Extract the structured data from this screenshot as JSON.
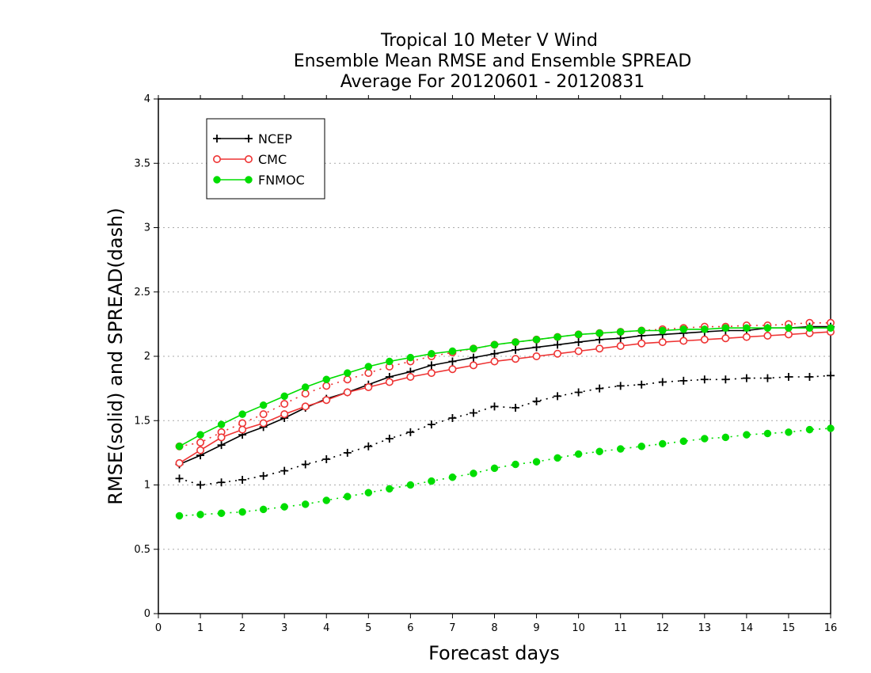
{
  "chart_data": {
    "type": "line",
    "title": [
      "Tropical 10 Meter V Wind",
      "Ensemble Mean RMSE and Ensemble SPREAD",
      "Average For 20120601 - 20120831"
    ],
    "xlabel": "Forecast days",
    "ylabel": "RMSE(solid) and SPREAD(dash)",
    "xlim": [
      0,
      16
    ],
    "ylim": [
      0,
      4
    ],
    "xticks": [
      "0",
      "1",
      "2",
      "3",
      "4",
      "5",
      "6",
      "7",
      "8",
      "9",
      "10",
      "11",
      "12",
      "13",
      "14",
      "15",
      "16"
    ],
    "yticks": [
      "0",
      "0.5",
      "1",
      "1.5",
      "2",
      "2.5",
      "3",
      "3.5",
      "4"
    ],
    "grid": "horizontal dotted",
    "legend_placement": "top-left",
    "x": [
      0.5,
      1,
      1.5,
      2,
      2.5,
      3,
      3.5,
      4,
      4.5,
      5,
      5.5,
      6,
      6.5,
      7,
      7.5,
      8,
      8.5,
      9,
      9.5,
      10,
      10.5,
      11,
      11.5,
      12,
      12.5,
      13,
      13.5,
      14,
      14.5,
      15,
      15.5,
      16
    ],
    "series": [
      {
        "name": "NCEP",
        "color": "#000000",
        "marker": "plus",
        "rmse": [
          1.16,
          1.23,
          1.31,
          1.39,
          1.45,
          1.52,
          1.6,
          1.67,
          1.72,
          1.78,
          1.84,
          1.88,
          1.93,
          1.96,
          1.99,
          2.02,
          2.05,
          2.07,
          2.09,
          2.11,
          2.13,
          2.14,
          2.16,
          2.17,
          2.18,
          2.19,
          2.2,
          2.2,
          2.22,
          2.22,
          2.23,
          2.23
        ],
        "spread": [
          1.05,
          1.0,
          1.02,
          1.04,
          1.07,
          1.11,
          1.16,
          1.2,
          1.25,
          1.3,
          1.36,
          1.41,
          1.47,
          1.52,
          1.56,
          1.61,
          1.6,
          1.65,
          1.69,
          1.72,
          1.75,
          1.77,
          1.78,
          1.8,
          1.81,
          1.82,
          1.82,
          1.83,
          1.83,
          1.84,
          1.84,
          1.85
        ]
      },
      {
        "name": "CMC",
        "color": "#ee3333",
        "marker": "open-circle",
        "rmse": [
          1.17,
          1.27,
          1.37,
          1.43,
          1.48,
          1.55,
          1.61,
          1.66,
          1.72,
          1.76,
          1.8,
          1.84,
          1.87,
          1.9,
          1.93,
          1.96,
          1.98,
          2.0,
          2.02,
          2.04,
          2.06,
          2.08,
          2.1,
          2.11,
          2.12,
          2.13,
          2.14,
          2.15,
          2.16,
          2.17,
          2.18,
          2.19
        ],
        "spread": [
          1.3,
          1.33,
          1.41,
          1.48,
          1.55,
          1.63,
          1.71,
          1.77,
          1.82,
          1.87,
          1.92,
          1.96,
          2.0,
          2.03,
          2.06,
          2.09,
          2.11,
          2.13,
          2.15,
          2.17,
          2.18,
          2.19,
          2.2,
          2.21,
          2.22,
          2.23,
          2.23,
          2.24,
          2.24,
          2.25,
          2.26,
          2.26
        ]
      },
      {
        "name": "FNMOC",
        "color": "#00dd00",
        "marker": "filled-circle",
        "rmse": [
          1.3,
          1.39,
          1.47,
          1.55,
          1.62,
          1.69,
          1.76,
          1.82,
          1.87,
          1.92,
          1.96,
          1.99,
          2.02,
          2.04,
          2.06,
          2.09,
          2.11,
          2.13,
          2.15,
          2.17,
          2.18,
          2.19,
          2.2,
          2.2,
          2.21,
          2.21,
          2.22,
          2.22,
          2.22,
          2.22,
          2.22,
          2.22
        ],
        "spread": [
          0.76,
          0.77,
          0.78,
          0.79,
          0.81,
          0.83,
          0.85,
          0.88,
          0.91,
          0.94,
          0.97,
          1.0,
          1.03,
          1.06,
          1.09,
          1.13,
          1.16,
          1.18,
          1.21,
          1.24,
          1.26,
          1.28,
          1.3,
          1.32,
          1.34,
          1.36,
          1.37,
          1.39,
          1.4,
          1.41,
          1.43,
          1.44
        ]
      }
    ]
  }
}
